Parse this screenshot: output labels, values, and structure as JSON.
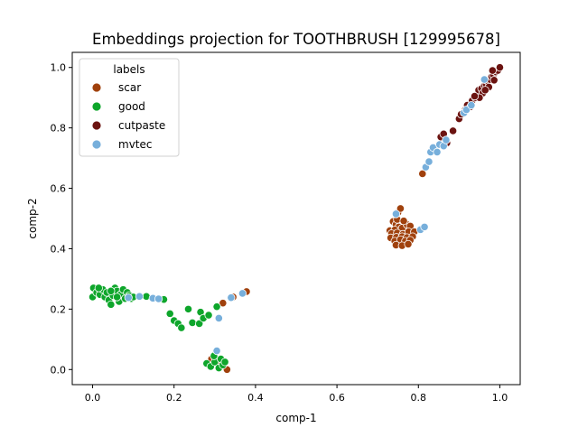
{
  "chart_data": {
    "type": "scatter",
    "title": "Embeddings projection for TOOTHBRUSH [129995678]",
    "xlabel": "comp-1",
    "ylabel": "comp-2",
    "xlim": [
      -0.05,
      1.05
    ],
    "ylim": [
      -0.05,
      1.05
    ],
    "x_ticks": [
      "0.0",
      "0.2",
      "0.4",
      "0.6",
      "0.8",
      "1.0"
    ],
    "y_ticks": [
      "0.0",
      "0.2",
      "0.4",
      "0.6",
      "0.8",
      "1.0"
    ],
    "grid": false,
    "legend": {
      "title": "labels",
      "placement": "top-left"
    },
    "series": [
      {
        "name": "scar",
        "color": "#a0410d",
        "points": [
          [
            0.32,
            0.22
          ],
          [
            0.345,
            0.24
          ],
          [
            0.378,
            0.258
          ],
          [
            0.33,
            0.0
          ],
          [
            0.292,
            0.035
          ],
          [
            0.31,
            0.02
          ],
          [
            0.81,
            0.648
          ],
          [
            0.75,
            0.52
          ],
          [
            0.756,
            0.533
          ],
          [
            0.738,
            0.49
          ],
          [
            0.745,
            0.48
          ],
          [
            0.752,
            0.472
          ],
          [
            0.73,
            0.46
          ],
          [
            0.742,
            0.462
          ],
          [
            0.76,
            0.468
          ],
          [
            0.772,
            0.48
          ],
          [
            0.78,
            0.475
          ],
          [
            0.734,
            0.45
          ],
          [
            0.748,
            0.452
          ],
          [
            0.762,
            0.448
          ],
          [
            0.776,
            0.456
          ],
          [
            0.79,
            0.456
          ],
          [
            0.732,
            0.436
          ],
          [
            0.746,
            0.438
          ],
          [
            0.76,
            0.44
          ],
          [
            0.772,
            0.437
          ],
          [
            0.786,
            0.44
          ],
          [
            0.742,
            0.425
          ],
          [
            0.756,
            0.43
          ],
          [
            0.768,
            0.425
          ],
          [
            0.78,
            0.428
          ],
          [
            0.745,
            0.412
          ],
          [
            0.76,
            0.41
          ],
          [
            0.775,
            0.415
          ],
          [
            0.748,
            0.497
          ],
          [
            0.764,
            0.492
          ]
        ]
      },
      {
        "name": "good",
        "color": "#0ea62b",
        "points": [
          [
            0.0,
            0.24
          ],
          [
            0.002,
            0.27
          ],
          [
            0.01,
            0.255
          ],
          [
            0.018,
            0.248
          ],
          [
            0.025,
            0.265
          ],
          [
            0.03,
            0.24
          ],
          [
            0.035,
            0.255
          ],
          [
            0.04,
            0.23
          ],
          [
            0.045,
            0.215
          ],
          [
            0.05,
            0.245
          ],
          [
            0.055,
            0.27
          ],
          [
            0.06,
            0.26
          ],
          [
            0.065,
            0.225
          ],
          [
            0.07,
            0.25
          ],
          [
            0.075,
            0.265
          ],
          [
            0.08,
            0.235
          ],
          [
            0.085,
            0.255
          ],
          [
            0.09,
            0.245
          ],
          [
            0.095,
            0.235
          ],
          [
            0.1,
            0.24
          ],
          [
            0.06,
            0.24
          ],
          [
            0.045,
            0.26
          ],
          [
            0.015,
            0.27
          ],
          [
            0.132,
            0.242
          ],
          [
            0.175,
            0.232
          ],
          [
            0.19,
            0.185
          ],
          [
            0.2,
            0.162
          ],
          [
            0.21,
            0.152
          ],
          [
            0.218,
            0.138
          ],
          [
            0.235,
            0.2
          ],
          [
            0.245,
            0.155
          ],
          [
            0.262,
            0.152
          ],
          [
            0.265,
            0.19
          ],
          [
            0.272,
            0.17
          ],
          [
            0.285,
            0.18
          ],
          [
            0.305,
            0.208
          ],
          [
            0.28,
            0.02
          ],
          [
            0.29,
            0.01
          ],
          [
            0.3,
            0.025
          ],
          [
            0.31,
            0.005
          ],
          [
            0.315,
            0.035
          ],
          [
            0.32,
            0.015
          ],
          [
            0.325,
            0.025
          ],
          [
            0.298,
            0.045
          ]
        ]
      },
      {
        "name": "cutpaste",
        "color": "#6b1310",
        "points": [
          [
            0.855,
            0.77
          ],
          [
            0.862,
            0.78
          ],
          [
            0.87,
            0.75
          ],
          [
            0.885,
            0.79
          ],
          [
            0.9,
            0.83
          ],
          [
            0.905,
            0.845
          ],
          [
            0.915,
            0.86
          ],
          [
            0.92,
            0.875
          ],
          [
            0.928,
            0.87
          ],
          [
            0.932,
            0.89
          ],
          [
            0.94,
            0.9
          ],
          [
            0.945,
            0.91
          ],
          [
            0.948,
            0.925
          ],
          [
            0.955,
            0.93
          ],
          [
            0.958,
            0.915
          ],
          [
            0.962,
            0.94
          ],
          [
            0.966,
            0.945
          ],
          [
            0.97,
            0.955
          ],
          [
            0.973,
            0.935
          ],
          [
            0.976,
            0.96
          ],
          [
            0.98,
            0.97
          ],
          [
            0.984,
            0.975
          ],
          [
            0.986,
            0.958
          ],
          [
            0.99,
            0.985
          ],
          [
            0.995,
            0.99
          ],
          [
            1.0,
            1.0
          ],
          [
            0.95,
            0.9
          ],
          [
            0.938,
            0.905
          ],
          [
            0.964,
            0.925
          ],
          [
            0.982,
            0.99
          ]
        ]
      },
      {
        "name": "mvtec",
        "color": "#77afdb",
        "points": [
          [
            0.088,
            0.238
          ],
          [
            0.115,
            0.242
          ],
          [
            0.148,
            0.236
          ],
          [
            0.162,
            0.234
          ],
          [
            0.31,
            0.17
          ],
          [
            0.34,
            0.238
          ],
          [
            0.368,
            0.252
          ],
          [
            0.305,
            0.062
          ],
          [
            0.745,
            0.515
          ],
          [
            0.805,
            0.463
          ],
          [
            0.815,
            0.472
          ],
          [
            0.818,
            0.67
          ],
          [
            0.826,
            0.688
          ],
          [
            0.83,
            0.72
          ],
          [
            0.836,
            0.735
          ],
          [
            0.846,
            0.72
          ],
          [
            0.852,
            0.745
          ],
          [
            0.862,
            0.74
          ],
          [
            0.868,
            0.76
          ],
          [
            0.912,
            0.85
          ],
          [
            0.918,
            0.86
          ],
          [
            0.93,
            0.875
          ],
          [
            0.962,
            0.96
          ]
        ]
      }
    ]
  }
}
